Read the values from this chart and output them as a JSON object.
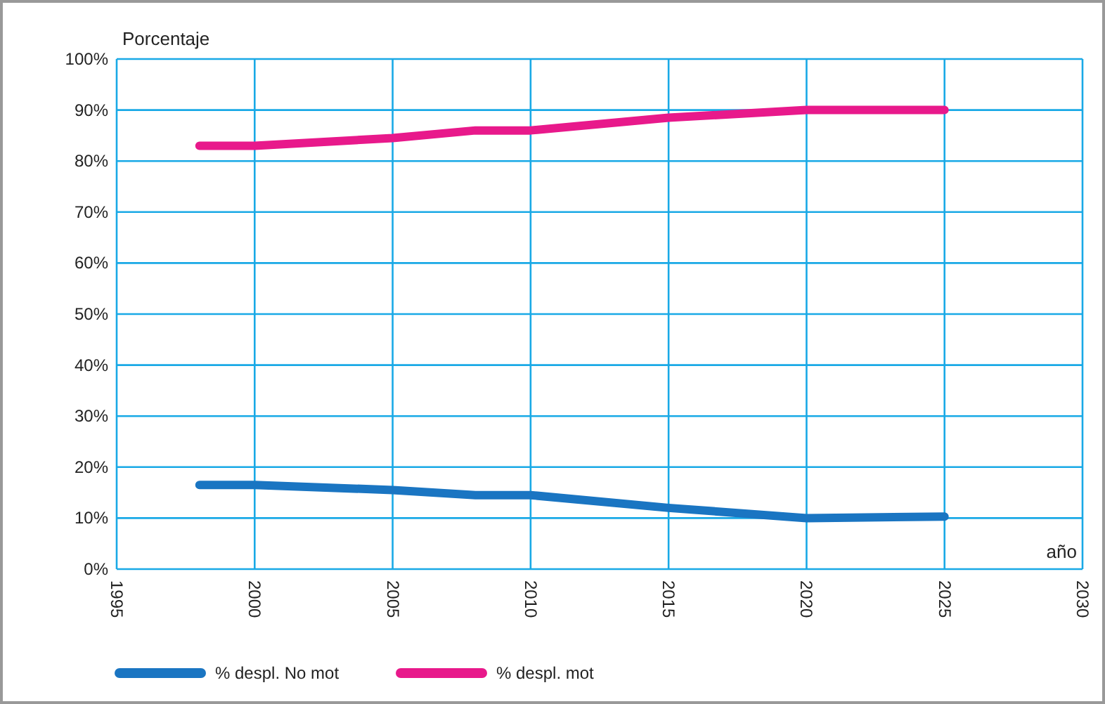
{
  "chart_data": {
    "type": "line",
    "xlabel": "año",
    "ylabel": "Porcentaje",
    "x": [
      1998,
      2000,
      2005,
      2008,
      2010,
      2015,
      2020,
      2025
    ],
    "series": [
      {
        "name": "% despl. No mot",
        "color": "#1a75c2",
        "values": [
          16.5,
          16.5,
          15.5,
          14.5,
          14.5,
          12,
          10,
          10.3
        ]
      },
      {
        "name": "% despl. mot",
        "color": "#e8198b",
        "values": [
          83,
          83,
          84.5,
          86,
          86,
          88.5,
          90,
          90
        ]
      }
    ],
    "xlim": [
      1995,
      2030
    ],
    "xticks": [
      1995,
      2000,
      2005,
      2010,
      2015,
      2020,
      2025,
      2030
    ],
    "ylim": [
      0,
      100
    ],
    "yticks": [
      {
        "value": 0,
        "label": "0%"
      },
      {
        "value": 10,
        "label": "10%"
      },
      {
        "value": 20,
        "label": "20%"
      },
      {
        "value": 30,
        "label": "30%"
      },
      {
        "value": 40,
        "label": "40%"
      },
      {
        "value": 50,
        "label": "50%"
      },
      {
        "value": 60,
        "label": "60%"
      },
      {
        "value": 70,
        "label": "70%"
      },
      {
        "value": 80,
        "label": "80%"
      },
      {
        "value": 90,
        "label": "90%"
      },
      {
        "value": 100,
        "label": "100%"
      }
    ],
    "grid": true,
    "legend": "bottom",
    "line_style": "solid",
    "marker": "none"
  }
}
